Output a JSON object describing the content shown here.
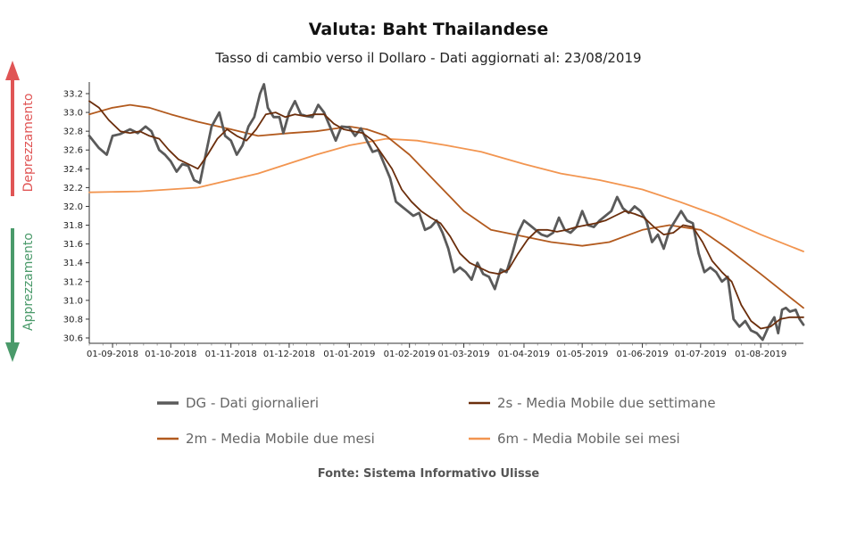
{
  "chart_data": {
    "type": "line",
    "title": "Valuta: Baht Thailandese",
    "subtitle": "Tasso di cambio verso il Dollaro - Dati aggiornati al: 23/08/2019",
    "source": "Fonte: Sistema Informativo Ulisse",
    "side_labels": {
      "up": "Deprezzamento",
      "down": "Apprezzamento"
    },
    "colors": {
      "up": "#e05555",
      "down": "#4a9a6a"
    },
    "x_tick_labels": [
      "01-09-2018",
      "01-10-2018",
      "01-11-2018",
      "01-12-2018",
      "01-01-2019",
      "01-02-2019",
      "01-03-2019",
      "01-04-2019",
      "01-05-2019",
      "01-06-2019",
      "01-07-2019",
      "01-08-2019"
    ],
    "x_start": "2018-08-20",
    "x_end": "2019-08-23",
    "ylim": [
      30.55,
      33.35
    ],
    "y_ticks": [
      30.6,
      30.8,
      31.0,
      31.2,
      31.4,
      31.6,
      31.8,
      32.0,
      32.2,
      32.4,
      32.6,
      32.8,
      33.0,
      33.2
    ],
    "series": [
      {
        "name": "DG - Dati giornalieri",
        "color": "#5a5a5a",
        "width": 2.8,
        "points": [
          [
            "2018-08-20",
            32.75
          ],
          [
            "2018-08-25",
            32.62
          ],
          [
            "2018-08-29",
            32.55
          ],
          [
            "2018-09-01",
            32.75
          ],
          [
            "2018-09-05",
            32.77
          ],
          [
            "2018-09-10",
            32.82
          ],
          [
            "2018-09-14",
            32.78
          ],
          [
            "2018-09-18",
            32.85
          ],
          [
            "2018-09-21",
            32.8
          ],
          [
            "2018-09-25",
            32.6
          ],
          [
            "2018-09-28",
            32.55
          ],
          [
            "2018-10-01",
            32.48
          ],
          [
            "2018-10-04",
            32.37
          ],
          [
            "2018-10-07",
            32.45
          ],
          [
            "2018-10-10",
            32.43
          ],
          [
            "2018-10-13",
            32.28
          ],
          [
            "2018-10-16",
            32.25
          ],
          [
            "2018-10-19",
            32.55
          ],
          [
            "2018-10-22",
            32.85
          ],
          [
            "2018-10-26",
            33.0
          ],
          [
            "2018-10-29",
            32.75
          ],
          [
            "2018-11-01",
            32.7
          ],
          [
            "2018-11-04",
            32.55
          ],
          [
            "2018-11-07",
            32.65
          ],
          [
            "2018-11-10",
            32.85
          ],
          [
            "2018-11-13",
            32.95
          ],
          [
            "2018-11-16",
            33.2
          ],
          [
            "2018-11-18",
            33.3
          ],
          [
            "2018-11-20",
            33.05
          ],
          [
            "2018-11-23",
            32.95
          ],
          [
            "2018-11-26",
            32.95
          ],
          [
            "2018-11-28",
            32.78
          ],
          [
            "2018-12-01",
            33.0
          ],
          [
            "2018-12-04",
            33.12
          ],
          [
            "2018-12-07",
            32.98
          ],
          [
            "2018-12-10",
            32.96
          ],
          [
            "2018-12-13",
            32.95
          ],
          [
            "2018-12-16",
            33.08
          ],
          [
            "2018-12-19",
            33.0
          ],
          [
            "2018-12-22",
            32.85
          ],
          [
            "2018-12-25",
            32.7
          ],
          [
            "2018-12-28",
            32.85
          ],
          [
            "2019-01-01",
            32.84
          ],
          [
            "2019-01-04",
            32.75
          ],
          [
            "2019-01-07",
            32.83
          ],
          [
            "2019-01-10",
            32.7
          ],
          [
            "2019-01-13",
            32.58
          ],
          [
            "2019-01-16",
            32.6
          ],
          [
            "2019-01-19",
            32.45
          ],
          [
            "2019-01-22",
            32.3
          ],
          [
            "2019-01-25",
            32.05
          ],
          [
            "2019-01-28",
            32.0
          ],
          [
            "2019-01-31",
            31.95
          ],
          [
            "2019-02-03",
            31.9
          ],
          [
            "2019-02-06",
            31.93
          ],
          [
            "2019-02-09",
            31.75
          ],
          [
            "2019-02-12",
            31.78
          ],
          [
            "2019-02-15",
            31.85
          ],
          [
            "2019-02-18",
            31.72
          ],
          [
            "2019-02-21",
            31.55
          ],
          [
            "2019-02-24",
            31.3
          ],
          [
            "2019-02-27",
            31.35
          ],
          [
            "2019-03-02",
            31.3
          ],
          [
            "2019-03-05",
            31.22
          ],
          [
            "2019-03-08",
            31.4
          ],
          [
            "2019-03-11",
            31.28
          ],
          [
            "2019-03-14",
            31.25
          ],
          [
            "2019-03-17",
            31.12
          ],
          [
            "2019-03-20",
            31.33
          ],
          [
            "2019-03-23",
            31.3
          ],
          [
            "2019-03-26",
            31.5
          ],
          [
            "2019-03-29",
            31.72
          ],
          [
            "2019-04-01",
            31.85
          ],
          [
            "2019-04-04",
            31.8
          ],
          [
            "2019-04-07",
            31.75
          ],
          [
            "2019-04-10",
            31.7
          ],
          [
            "2019-04-13",
            31.68
          ],
          [
            "2019-04-16",
            31.72
          ],
          [
            "2019-04-19",
            31.88
          ],
          [
            "2019-04-22",
            31.75
          ],
          [
            "2019-04-25",
            31.72
          ],
          [
            "2019-04-28",
            31.78
          ],
          [
            "2019-05-01",
            31.95
          ],
          [
            "2019-05-04",
            31.8
          ],
          [
            "2019-05-07",
            31.78
          ],
          [
            "2019-05-10",
            31.85
          ],
          [
            "2019-05-13",
            31.9
          ],
          [
            "2019-05-16",
            31.95
          ],
          [
            "2019-05-19",
            32.1
          ],
          [
            "2019-05-22",
            31.98
          ],
          [
            "2019-05-25",
            31.93
          ],
          [
            "2019-05-28",
            32.0
          ],
          [
            "2019-05-31",
            31.95
          ],
          [
            "2019-06-03",
            31.85
          ],
          [
            "2019-06-06",
            31.62
          ],
          [
            "2019-06-09",
            31.7
          ],
          [
            "2019-06-12",
            31.55
          ],
          [
            "2019-06-15",
            31.75
          ],
          [
            "2019-06-18",
            31.85
          ],
          [
            "2019-06-21",
            31.95
          ],
          [
            "2019-06-24",
            31.85
          ],
          [
            "2019-06-27",
            31.82
          ],
          [
            "2019-06-30",
            31.5
          ],
          [
            "2019-07-03",
            31.3
          ],
          [
            "2019-07-06",
            31.35
          ],
          [
            "2019-07-09",
            31.3
          ],
          [
            "2019-07-12",
            31.2
          ],
          [
            "2019-07-15",
            31.25
          ],
          [
            "2019-07-18",
            30.8
          ],
          [
            "2019-07-21",
            30.72
          ],
          [
            "2019-07-24",
            30.78
          ],
          [
            "2019-07-27",
            30.68
          ],
          [
            "2019-07-30",
            30.65
          ],
          [
            "2019-08-02",
            30.58
          ],
          [
            "2019-08-05",
            30.72
          ],
          [
            "2019-08-08",
            30.82
          ],
          [
            "2019-08-10",
            30.65
          ],
          [
            "2019-08-12",
            30.9
          ],
          [
            "2019-08-14",
            30.92
          ],
          [
            "2019-08-16",
            30.88
          ],
          [
            "2019-08-19",
            30.9
          ],
          [
            "2019-08-21",
            30.8
          ],
          [
            "2019-08-23",
            30.74
          ]
        ]
      },
      {
        "name": "2s - Media Mobile due settimane",
        "color": "#6b2e0c",
        "width": 1.8,
        "points": [
          [
            "2018-08-20",
            33.12
          ],
          [
            "2018-08-25",
            33.05
          ],
          [
            "2018-08-30",
            32.92
          ],
          [
            "2018-09-05",
            32.8
          ],
          [
            "2018-09-10",
            32.78
          ],
          [
            "2018-09-15",
            32.8
          ],
          [
            "2018-09-20",
            32.75
          ],
          [
            "2018-09-25",
            32.72
          ],
          [
            "2018-09-30",
            32.6
          ],
          [
            "2018-10-05",
            32.5
          ],
          [
            "2018-10-10",
            32.45
          ],
          [
            "2018-10-15",
            32.4
          ],
          [
            "2018-10-20",
            32.55
          ],
          [
            "2018-10-25",
            32.72
          ],
          [
            "2018-10-30",
            32.82
          ],
          [
            "2018-11-04",
            32.75
          ],
          [
            "2018-11-09",
            32.7
          ],
          [
            "2018-11-14",
            32.82
          ],
          [
            "2018-11-19",
            32.98
          ],
          [
            "2018-11-24",
            33.0
          ],
          [
            "2018-11-29",
            32.95
          ],
          [
            "2018-12-04",
            32.98
          ],
          [
            "2018-12-09",
            32.96
          ],
          [
            "2018-12-14",
            32.98
          ],
          [
            "2018-12-19",
            32.98
          ],
          [
            "2018-12-24",
            32.88
          ],
          [
            "2018-12-29",
            32.82
          ],
          [
            "2019-01-03",
            32.8
          ],
          [
            "2019-01-08",
            32.78
          ],
          [
            "2019-01-13",
            32.7
          ],
          [
            "2019-01-18",
            32.55
          ],
          [
            "2019-01-23",
            32.4
          ],
          [
            "2019-01-28",
            32.18
          ],
          [
            "2019-02-02",
            32.05
          ],
          [
            "2019-02-07",
            31.95
          ],
          [
            "2019-02-12",
            31.88
          ],
          [
            "2019-02-17",
            31.82
          ],
          [
            "2019-02-22",
            31.68
          ],
          [
            "2019-02-27",
            31.5
          ],
          [
            "2019-03-04",
            31.4
          ],
          [
            "2019-03-09",
            31.35
          ],
          [
            "2019-03-14",
            31.3
          ],
          [
            "2019-03-19",
            31.28
          ],
          [
            "2019-03-24",
            31.33
          ],
          [
            "2019-03-29",
            31.5
          ],
          [
            "2019-04-03",
            31.65
          ],
          [
            "2019-04-08",
            31.75
          ],
          [
            "2019-04-13",
            31.75
          ],
          [
            "2019-04-18",
            31.73
          ],
          [
            "2019-04-23",
            31.75
          ],
          [
            "2019-04-28",
            31.78
          ],
          [
            "2019-05-03",
            31.8
          ],
          [
            "2019-05-08",
            31.82
          ],
          [
            "2019-05-13",
            31.85
          ],
          [
            "2019-05-18",
            31.9
          ],
          [
            "2019-05-23",
            31.95
          ],
          [
            "2019-05-28",
            31.92
          ],
          [
            "2019-06-02",
            31.88
          ],
          [
            "2019-06-07",
            31.78
          ],
          [
            "2019-06-12",
            31.7
          ],
          [
            "2019-06-17",
            31.72
          ],
          [
            "2019-06-22",
            31.8
          ],
          [
            "2019-06-27",
            31.78
          ],
          [
            "2019-07-02",
            31.62
          ],
          [
            "2019-07-07",
            31.42
          ],
          [
            "2019-07-12",
            31.3
          ],
          [
            "2019-07-17",
            31.2
          ],
          [
            "2019-07-22",
            30.95
          ],
          [
            "2019-07-27",
            30.78
          ],
          [
            "2019-08-01",
            30.7
          ],
          [
            "2019-08-06",
            30.72
          ],
          [
            "2019-08-11",
            30.8
          ],
          [
            "2019-08-16",
            30.82
          ],
          [
            "2019-08-23",
            30.82
          ]
        ]
      },
      {
        "name": "2m - Media Mobile due mesi",
        "color": "#b25a1e",
        "width": 1.8,
        "points": [
          [
            "2018-08-20",
            32.98
          ],
          [
            "2018-09-01",
            33.05
          ],
          [
            "2018-09-10",
            33.08
          ],
          [
            "2018-09-20",
            33.05
          ],
          [
            "2018-10-01",
            32.98
          ],
          [
            "2018-10-15",
            32.9
          ],
          [
            "2018-11-01",
            32.82
          ],
          [
            "2018-11-15",
            32.75
          ],
          [
            "2018-12-01",
            32.78
          ],
          [
            "2018-12-15",
            32.8
          ],
          [
            "2019-01-01",
            32.85
          ],
          [
            "2019-01-10",
            32.82
          ],
          [
            "2019-01-20",
            32.75
          ],
          [
            "2019-02-01",
            32.55
          ],
          [
            "2019-02-15",
            32.25
          ],
          [
            "2019-03-01",
            31.95
          ],
          [
            "2019-03-15",
            31.75
          ],
          [
            "2019-04-01",
            31.68
          ],
          [
            "2019-04-15",
            31.62
          ],
          [
            "2019-05-01",
            31.58
          ],
          [
            "2019-05-15",
            31.62
          ],
          [
            "2019-06-01",
            31.75
          ],
          [
            "2019-06-15",
            31.8
          ],
          [
            "2019-07-01",
            31.75
          ],
          [
            "2019-07-15",
            31.55
          ],
          [
            "2019-08-01",
            31.28
          ],
          [
            "2019-08-15",
            31.05
          ],
          [
            "2019-08-23",
            30.92
          ]
        ]
      },
      {
        "name": "6m - Media Mobile sei mesi",
        "color": "#f29550",
        "width": 1.8,
        "points": [
          [
            "2018-08-20",
            32.15
          ],
          [
            "2018-09-15",
            32.16
          ],
          [
            "2018-10-15",
            32.2
          ],
          [
            "2018-11-15",
            32.35
          ],
          [
            "2018-12-15",
            32.55
          ],
          [
            "2019-01-01",
            32.65
          ],
          [
            "2019-01-20",
            32.72
          ],
          [
            "2019-02-05",
            32.7
          ],
          [
            "2019-02-20",
            32.65
          ],
          [
            "2019-03-10",
            32.58
          ],
          [
            "2019-04-01",
            32.45
          ],
          [
            "2019-04-20",
            32.35
          ],
          [
            "2019-05-10",
            32.28
          ],
          [
            "2019-06-01",
            32.18
          ],
          [
            "2019-06-20",
            32.05
          ],
          [
            "2019-07-10",
            31.9
          ],
          [
            "2019-08-01",
            31.7
          ],
          [
            "2019-08-23",
            31.52
          ]
        ]
      }
    ]
  }
}
